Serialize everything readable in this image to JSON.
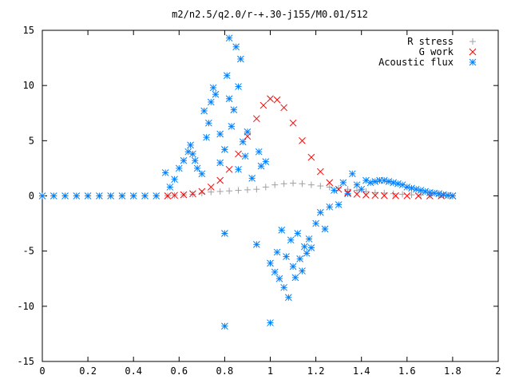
{
  "chart_data": {
    "type": "scatter",
    "title": "m2/n2.5/q2.0/r-+.30-j155/M0.01/512",
    "xlabel": "",
    "ylabel": "",
    "xlim": [
      0,
      2
    ],
    "ylim": [
      -15,
      15
    ],
    "x_ticks": [
      "0",
      "0.2",
      "0.4",
      "0.6",
      "0.8",
      "1",
      "1.2",
      "1.4",
      "1.6",
      "1.8",
      "2"
    ],
    "y_ticks": [
      "15",
      "10",
      "5",
      "0",
      "-5",
      "-10",
      "-15"
    ],
    "grid": false,
    "legend_position": "top-right",
    "series": [
      {
        "name": "R stress",
        "marker": "plus",
        "color": "#a0a0a0",
        "points": [
          [
            0.0,
            0
          ],
          [
            0.05,
            0
          ],
          [
            0.1,
            0
          ],
          [
            0.15,
            0
          ],
          [
            0.2,
            0
          ],
          [
            0.25,
            0
          ],
          [
            0.3,
            0
          ],
          [
            0.35,
            0
          ],
          [
            0.4,
            0
          ],
          [
            0.45,
            0
          ],
          [
            0.5,
            0
          ],
          [
            0.55,
            0
          ],
          [
            0.58,
            0.05
          ],
          [
            0.62,
            0.1
          ],
          [
            0.66,
            0.15
          ],
          [
            0.7,
            0.25
          ],
          [
            0.74,
            0.35
          ],
          [
            0.78,
            0.4
          ],
          [
            0.82,
            0.45
          ],
          [
            0.86,
            0.5
          ],
          [
            0.9,
            0.55
          ],
          [
            0.94,
            0.6
          ],
          [
            0.98,
            0.8
          ],
          [
            1.02,
            1.0
          ],
          [
            1.06,
            1.1
          ],
          [
            1.1,
            1.15
          ],
          [
            1.14,
            1.1
          ],
          [
            1.18,
            1.0
          ],
          [
            1.22,
            0.9
          ],
          [
            1.26,
            0.8
          ],
          [
            1.3,
            0.7
          ],
          [
            1.34,
            0.6
          ],
          [
            1.38,
            0.5
          ],
          [
            1.42,
            0.4
          ],
          [
            1.46,
            0.3
          ],
          [
            1.5,
            0.25
          ],
          [
            1.54,
            0.2
          ],
          [
            1.58,
            0.15
          ],
          [
            1.62,
            0.1
          ],
          [
            1.66,
            0.08
          ],
          [
            1.7,
            0.05
          ],
          [
            1.74,
            0.03
          ],
          [
            1.78,
            0.01
          ],
          [
            1.8,
            0
          ]
        ]
      },
      {
        "name": "G work",
        "marker": "cross",
        "color": "#ff0000",
        "points": [
          [
            0.55,
            0.0
          ],
          [
            0.58,
            0.05
          ],
          [
            0.62,
            0.1
          ],
          [
            0.66,
            0.2
          ],
          [
            0.7,
            0.4
          ],
          [
            0.74,
            0.8
          ],
          [
            0.78,
            1.4
          ],
          [
            0.82,
            2.4
          ],
          [
            0.86,
            3.8
          ],
          [
            0.9,
            5.4
          ],
          [
            0.94,
            7.0
          ],
          [
            0.97,
            8.2
          ],
          [
            1.0,
            8.8
          ],
          [
            1.03,
            8.7
          ],
          [
            1.06,
            8.0
          ],
          [
            1.1,
            6.6
          ],
          [
            1.14,
            5.0
          ],
          [
            1.18,
            3.5
          ],
          [
            1.22,
            2.2
          ],
          [
            1.26,
            1.2
          ],
          [
            1.3,
            0.6
          ],
          [
            1.34,
            0.3
          ],
          [
            1.38,
            0.15
          ],
          [
            1.42,
            0.08
          ],
          [
            1.46,
            0.05
          ],
          [
            1.5,
            0.03
          ],
          [
            1.55,
            0.02
          ],
          [
            1.6,
            0.01
          ],
          [
            1.65,
            0.0
          ],
          [
            1.7,
            0.0
          ],
          [
            1.75,
            0.0
          ],
          [
            1.8,
            0.0
          ]
        ]
      },
      {
        "name": "Acoustic flux",
        "marker": "star",
        "color": "#0080ff",
        "points": [
          [
            0.0,
            0
          ],
          [
            0.05,
            0
          ],
          [
            0.1,
            0
          ],
          [
            0.15,
            0
          ],
          [
            0.2,
            0
          ],
          [
            0.25,
            0
          ],
          [
            0.3,
            0
          ],
          [
            0.35,
            0
          ],
          [
            0.4,
            0
          ],
          [
            0.45,
            0
          ],
          [
            0.5,
            0
          ],
          [
            0.54,
            2.1
          ],
          [
            0.56,
            0.8
          ],
          [
            0.58,
            1.5
          ],
          [
            0.6,
            2.5
          ],
          [
            0.62,
            3.2
          ],
          [
            0.64,
            4.0
          ],
          [
            0.65,
            4.6
          ],
          [
            0.66,
            3.8
          ],
          [
            0.67,
            3.2
          ],
          [
            0.68,
            2.5
          ],
          [
            0.7,
            2.0
          ],
          [
            0.71,
            7.7
          ],
          [
            0.72,
            5.3
          ],
          [
            0.73,
            6.6
          ],
          [
            0.74,
            8.5
          ],
          [
            0.75,
            9.8
          ],
          [
            0.76,
            9.2
          ],
          [
            0.78,
            3.0
          ],
          [
            0.78,
            5.6
          ],
          [
            0.8,
            4.2
          ],
          [
            0.8,
            -3.4
          ],
          [
            0.8,
            -11.8
          ],
          [
            0.81,
            10.9
          ],
          [
            0.82,
            8.8
          ],
          [
            0.82,
            14.3
          ],
          [
            0.83,
            6.3
          ],
          [
            0.84,
            7.8
          ],
          [
            0.85,
            13.5
          ],
          [
            0.86,
            9.9
          ],
          [
            0.86,
            2.4
          ],
          [
            0.87,
            12.4
          ],
          [
            0.88,
            4.9
          ],
          [
            0.89,
            3.6
          ],
          [
            0.9,
            5.8
          ],
          [
            0.92,
            1.6
          ],
          [
            0.94,
            -4.4
          ],
          [
            0.95,
            4.0
          ],
          [
            0.96,
            2.7
          ],
          [
            0.98,
            3.1
          ],
          [
            1.0,
            -6.1
          ],
          [
            1.0,
            -11.5
          ],
          [
            1.02,
            -6.9
          ],
          [
            1.03,
            -5.1
          ],
          [
            1.04,
            -7.5
          ],
          [
            1.05,
            -3.1
          ],
          [
            1.06,
            -8.3
          ],
          [
            1.07,
            -5.5
          ],
          [
            1.08,
            -9.2
          ],
          [
            1.09,
            -4.0
          ],
          [
            1.1,
            -6.4
          ],
          [
            1.11,
            -7.4
          ],
          [
            1.12,
            -3.4
          ],
          [
            1.13,
            -5.7
          ],
          [
            1.14,
            -6.8
          ],
          [
            1.15,
            -4.6
          ],
          [
            1.16,
            -5.2
          ],
          [
            1.17,
            -3.9
          ],
          [
            1.18,
            -4.7
          ],
          [
            1.2,
            -2.5
          ],
          [
            1.22,
            -1.5
          ],
          [
            1.24,
            -3.0
          ],
          [
            1.26,
            -1.0
          ],
          [
            1.28,
            0.5
          ],
          [
            1.3,
            -0.8
          ],
          [
            1.32,
            1.2
          ],
          [
            1.34,
            0.2
          ],
          [
            1.36,
            2.0
          ],
          [
            1.38,
            1.0
          ],
          [
            1.4,
            0.6
          ],
          [
            1.42,
            1.4
          ],
          [
            1.44,
            1.2
          ],
          [
            1.46,
            1.3
          ],
          [
            1.48,
            1.4
          ],
          [
            1.5,
            1.4
          ],
          [
            1.52,
            1.3
          ],
          [
            1.54,
            1.2
          ],
          [
            1.56,
            1.1
          ],
          [
            1.58,
            1.0
          ],
          [
            1.6,
            0.8
          ],
          [
            1.62,
            0.7
          ],
          [
            1.64,
            0.6
          ],
          [
            1.66,
            0.5
          ],
          [
            1.68,
            0.4
          ],
          [
            1.7,
            0.3
          ],
          [
            1.72,
            0.25
          ],
          [
            1.74,
            0.2
          ],
          [
            1.76,
            0.1
          ],
          [
            1.78,
            0.05
          ],
          [
            1.8,
            0.0
          ]
        ]
      }
    ]
  }
}
